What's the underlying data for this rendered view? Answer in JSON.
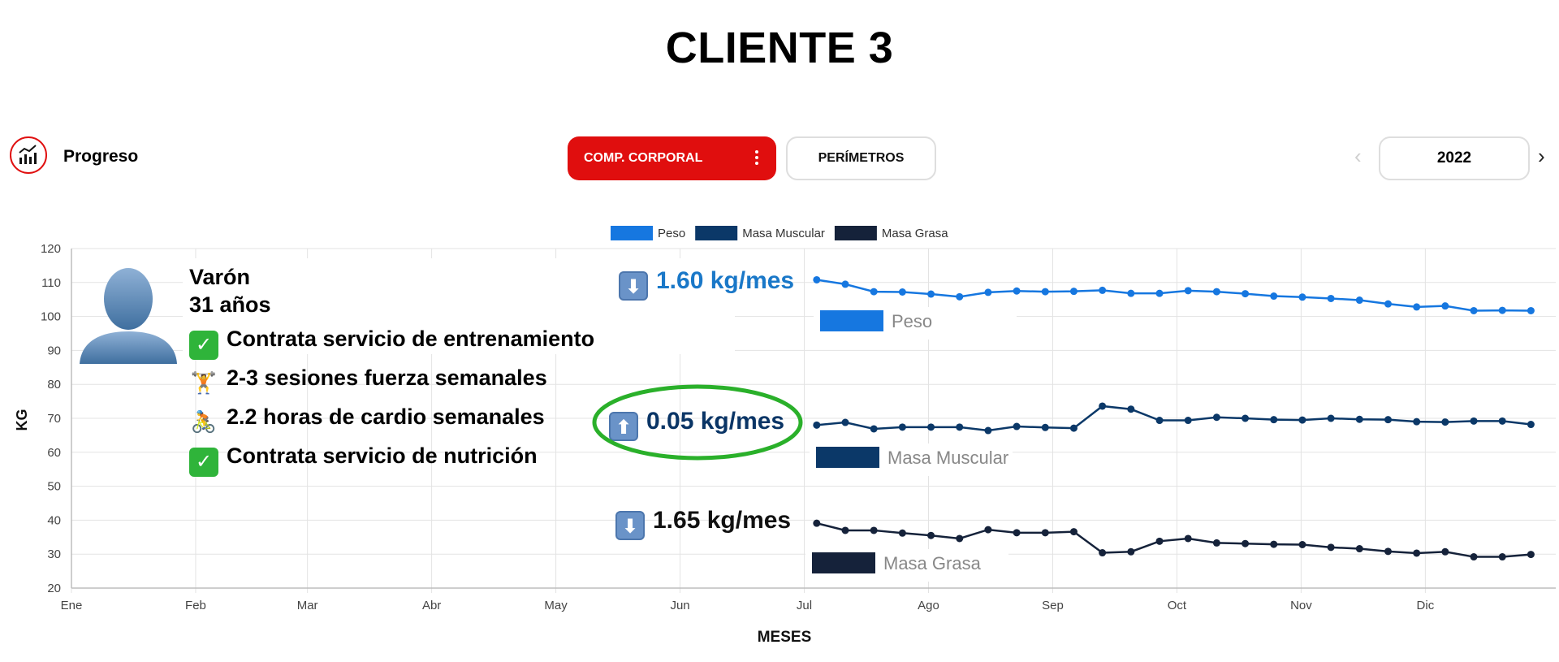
{
  "title": "CLIENTE 3",
  "header": {
    "progress_label": "Progreso",
    "tabs": [
      {
        "label": "COMP. CORPORAL",
        "active": true
      },
      {
        "label": "PERÍMETROS",
        "active": false
      }
    ],
    "year": "2022",
    "accent_color": "#e00e0e"
  },
  "profile": {
    "lines": [
      "Varón",
      "31 años"
    ],
    "items": [
      {
        "icon": "check-mark-icon",
        "text": "Contrata servicio de entrenamiento"
      },
      {
        "icon": "weightlifter-icon",
        "text": "2-3 sesiones fuerza semanales"
      },
      {
        "icon": "cyclist-icon",
        "text": "2.2 horas de cardio semanales"
      },
      {
        "icon": "check-mark-icon",
        "text": "Contrata servicio de nutrición"
      }
    ]
  },
  "annotations": [
    {
      "arrow": "down",
      "text": "1.60 kg/mes",
      "color": "#1a78c8"
    },
    {
      "arrow": "up",
      "text": "0.05 kg/mes",
      "color": "#0a3566",
      "highlight_color": "#2ab02a"
    },
    {
      "arrow": "down",
      "text": "1.65 kg/mes",
      "color": "#111111"
    }
  ],
  "chart_data": {
    "type": "line",
    "xlabel": "MESES",
    "ylabel": "KG",
    "ylim": [
      20,
      120
    ],
    "yticks": [
      20,
      30,
      40,
      50,
      60,
      70,
      80,
      90,
      100,
      110,
      120
    ],
    "xlim": [
      0,
      11.95
    ],
    "month_labels": [
      "Ene",
      "Feb",
      "Mar",
      "Abr",
      "May",
      "Jun",
      "Jul",
      "Ago",
      "Sep",
      "Oct",
      "Nov",
      "Dic"
    ],
    "month_positions": [
      0,
      1,
      1.9,
      2.9,
      3.9,
      4.9,
      5.9,
      6.9,
      7.9,
      8.9,
      9.9,
      10.9
    ],
    "legend_position": "top-center",
    "grid": true,
    "x": [
      6.0,
      6.23,
      6.46,
      6.69,
      6.92,
      7.15,
      7.38,
      7.61,
      7.84,
      8.07,
      8.3,
      8.53,
      8.76,
      8.99,
      9.22,
      9.45,
      9.68,
      9.91,
      10.14,
      10.37,
      10.6,
      10.83,
      11.06,
      11.29,
      11.52,
      11.75
    ],
    "series": [
      {
        "name": "Peso",
        "color": "#1677e0",
        "values": [
          110.8,
          109.5,
          107.3,
          107.2,
          106.6,
          105.8,
          107.1,
          107.5,
          107.3,
          107.4,
          107.7,
          106.8,
          106.8,
          107.6,
          107.3,
          106.7,
          106.0,
          105.7,
          105.3,
          104.8,
          103.7,
          102.8,
          103.1,
          101.7,
          101.8,
          101.7
        ]
      },
      {
        "name": "Masa Muscular",
        "color": "#0b3868",
        "values": [
          68.0,
          68.8,
          66.9,
          67.4,
          67.4,
          67.4,
          66.4,
          67.6,
          67.3,
          67.1,
          73.6,
          72.7,
          69.4,
          69.4,
          70.3,
          70.0,
          69.6,
          69.5,
          70.0,
          69.7,
          69.6,
          69.0,
          68.9,
          69.2,
          69.2,
          68.2
        ]
      },
      {
        "name": "Masa Grasa",
        "color": "#15223a",
        "values": [
          39.1,
          37.0,
          37.0,
          36.2,
          35.5,
          34.6,
          37.2,
          36.3,
          36.3,
          36.6,
          30.4,
          30.7,
          33.8,
          34.6,
          33.3,
          33.1,
          32.9,
          32.8,
          32.0,
          31.6,
          30.8,
          30.3,
          30.7,
          29.2,
          29.2,
          29.9
        ]
      }
    ],
    "series_labels": [
      "Peso",
      "Masa Muscular",
      "Masa Grasa"
    ]
  }
}
